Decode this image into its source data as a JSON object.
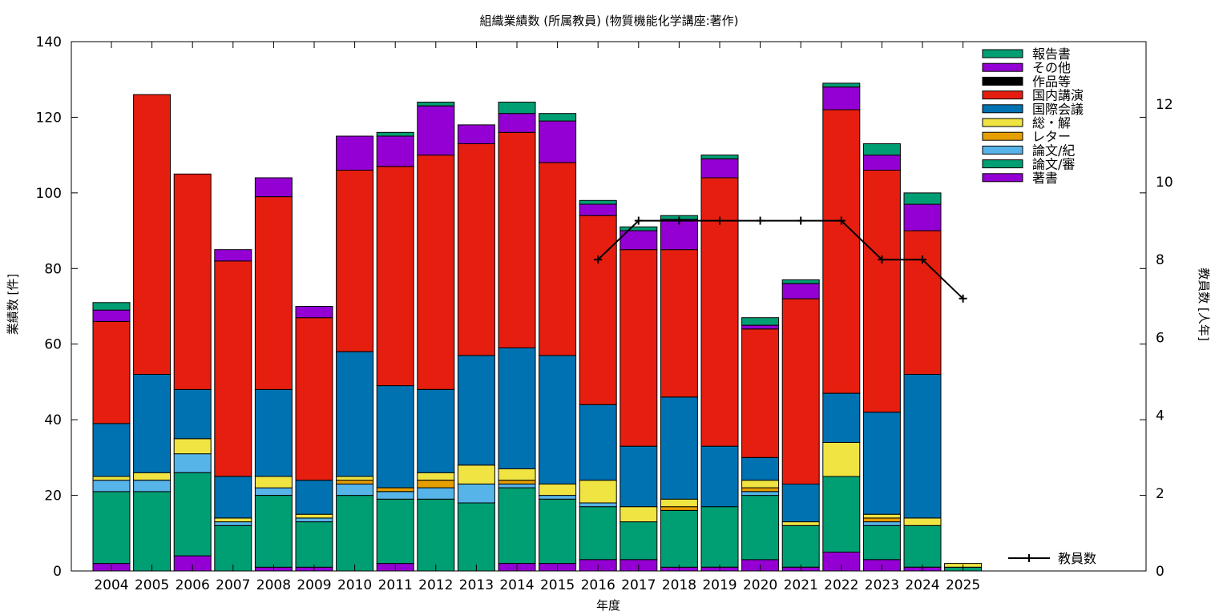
{
  "chart_data": {
    "type": "bar",
    "stacked": true,
    "title": "組織業績数 (所属教員) (物質機能化学講座:著作)",
    "xlabel": "年度",
    "ylabel": "業績数 [件]",
    "y2label": "教員数 [人年]",
    "ylim": [
      0,
      140
    ],
    "y2lim": [
      0,
      13.6
    ],
    "yticks": [
      0,
      20,
      40,
      60,
      80,
      100,
      120,
      140
    ],
    "y2ticks": [
      0,
      2,
      4,
      6,
      8,
      10,
      12
    ],
    "grid": false,
    "legend_position": "top-right",
    "categories": [
      "2004",
      "2005",
      "2006",
      "2007",
      "2008",
      "2009",
      "2010",
      "2011",
      "2012",
      "2013",
      "2014",
      "2015",
      "2016",
      "2017",
      "2018",
      "2019",
      "2020",
      "2021",
      "2022",
      "2023",
      "2024",
      "2025"
    ],
    "series": [
      {
        "name": "著書",
        "color": "#9400d3",
        "values": [
          2,
          0,
          4,
          0,
          1,
          1,
          0,
          2,
          0,
          0,
          2,
          2,
          3,
          3,
          1,
          1,
          3,
          1,
          5,
          3,
          1,
          0
        ]
      },
      {
        "name": "論文/審",
        "color": "#009e73",
        "values": [
          19,
          21,
          22,
          12,
          19,
          12,
          20,
          17,
          19,
          18,
          20,
          17,
          14,
          10,
          15,
          16,
          17,
          11,
          20,
          9,
          11,
          1
        ]
      },
      {
        "name": "論文/紀",
        "color": "#56b4e9",
        "values": [
          3,
          3,
          5,
          1,
          2,
          1,
          3,
          2,
          3,
          5,
          1,
          1,
          1,
          0,
          0,
          0,
          1,
          0,
          0,
          1,
          0,
          0
        ]
      },
      {
        "name": "レター",
        "color": "#e69f00",
        "values": [
          0,
          0,
          0,
          0,
          0,
          0,
          1,
          1,
          2,
          0,
          1,
          0,
          0,
          0,
          1,
          0,
          1,
          0,
          0,
          1,
          0,
          0
        ]
      },
      {
        "name": "総・解",
        "color": "#f0e442",
        "values": [
          1,
          2,
          4,
          1,
          3,
          1,
          1,
          0,
          2,
          5,
          3,
          3,
          6,
          4,
          2,
          0,
          2,
          1,
          9,
          1,
          2,
          1
        ]
      },
      {
        "name": "国際会議",
        "color": "#0072b2",
        "values": [
          14,
          26,
          13,
          11,
          23,
          9,
          33,
          27,
          22,
          29,
          32,
          34,
          20,
          16,
          27,
          16,
          6,
          10,
          13,
          27,
          38,
          0
        ]
      },
      {
        "name": "国内講演",
        "color": "#e51e10",
        "values": [
          27,
          74,
          57,
          57,
          51,
          43,
          48,
          58,
          62,
          56,
          57,
          51,
          50,
          52,
          39,
          71,
          34,
          49,
          75,
          64,
          38,
          0
        ]
      },
      {
        "name": "作品等",
        "color": "#000000",
        "values": [
          0,
          0,
          0,
          0,
          0,
          0,
          0,
          0,
          0,
          0,
          0,
          0,
          0,
          0,
          0,
          0,
          0,
          0,
          0,
          0,
          0,
          0
        ]
      },
      {
        "name": "その他",
        "color": "#9400d3",
        "values": [
          3,
          0,
          0,
          3,
          5,
          3,
          9,
          8,
          13,
          5,
          5,
          11,
          3,
          5,
          8,
          5,
          1,
          4,
          6,
          4,
          7,
          0
        ]
      },
      {
        "name": "報告書",
        "color": "#009e73",
        "values": [
          2,
          0,
          0,
          0,
          0,
          0,
          0,
          1,
          1,
          0,
          3,
          2,
          1,
          1,
          1,
          1,
          2,
          1,
          1,
          3,
          3,
          0
        ]
      }
    ],
    "line_series": {
      "name": "教員数",
      "axis": "y2",
      "color": "#000000",
      "x": [
        "2016",
        "2017",
        "2018",
        "2019",
        "2020",
        "2021",
        "2022",
        "2023",
        "2024",
        "2025"
      ],
      "values": [
        8,
        9,
        9,
        9,
        9,
        9,
        9,
        8,
        8,
        7
      ]
    },
    "legend_order": [
      "報告書",
      "その他",
      "作品等",
      "国内講演",
      "国際会議",
      "総・解",
      "レター",
      "論文/紀",
      "論文/審",
      "著書"
    ]
  }
}
